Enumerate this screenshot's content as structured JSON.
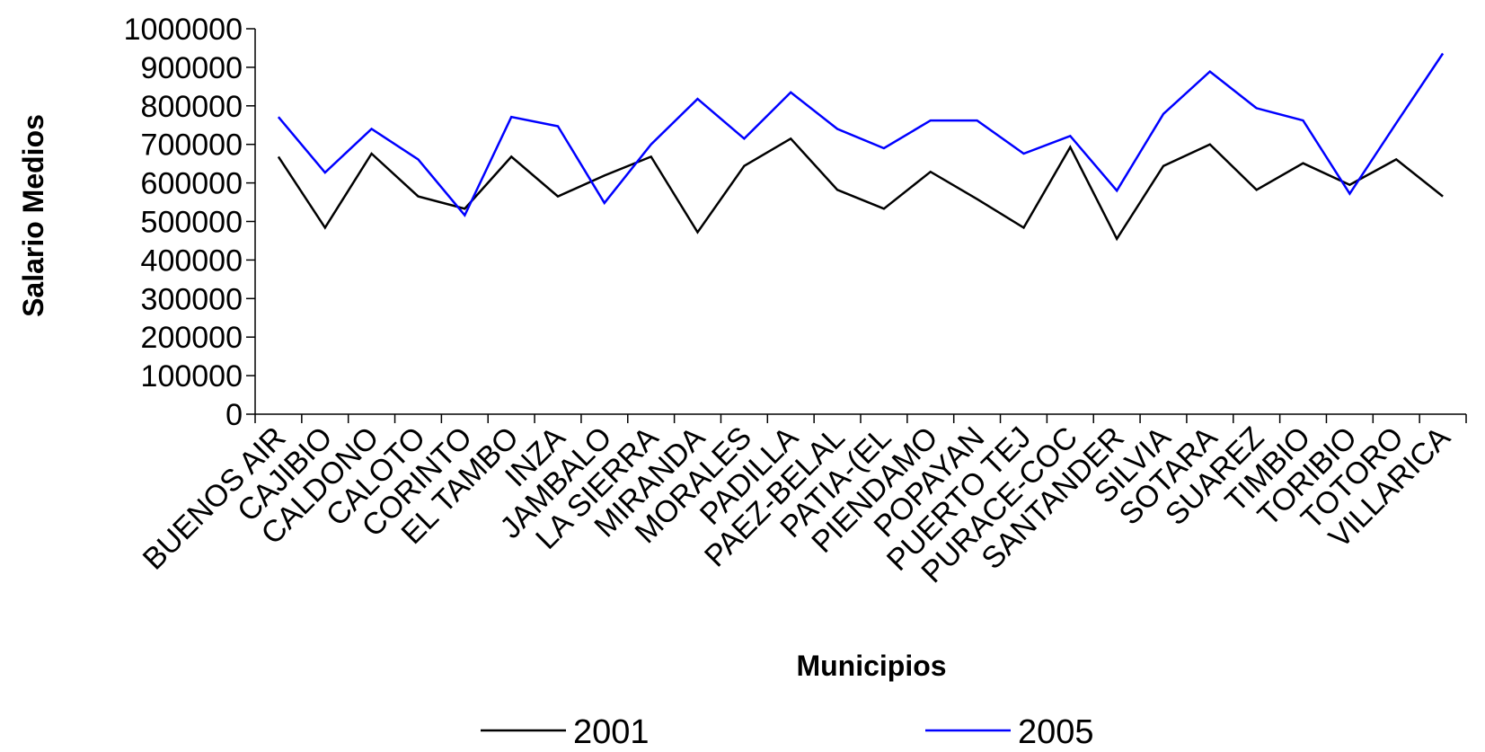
{
  "chart_data": {
    "type": "line",
    "x_label": "Municipios",
    "y_label": "Salario Medios",
    "categories": [
      "BUENOS AIR",
      "CAJIBIO",
      "CALDONO",
      "CALOTO",
      "CORINTO",
      "EL TAMBO",
      "INZA",
      "JAMBALO",
      "LA SIERRA",
      "MIRANDA",
      "MORALES",
      "PADILLA",
      "PAEZ-BELAL",
      "PATIA-(EL",
      "PIENDAMO",
      "POPAYAN",
      "PUERTO TEJ",
      "PURACE-COC",
      "SANTANDER",
      "SILVIA",
      "SOTARA",
      "SUAREZ",
      "TIMBIO",
      "TORIBIO",
      "TOTORO",
      "VILLARICA"
    ],
    "series": [
      {
        "name": "2001",
        "color": "#000000",
        "values": [
          668000,
          484000,
          676000,
          565000,
          533000,
          668000,
          565000,
          619000,
          668000,
          472000,
          644000,
          715000,
          582000,
          533000,
          629000,
          558000,
          484000,
          693000,
          455000,
          644000,
          700000,
          582000,
          651000,
          595000,
          661000,
          565000
        ]
      },
      {
        "name": "2005",
        "color": "#0000ff",
        "values": [
          771000,
          627000,
          740000,
          661000,
          516000,
          771000,
          747000,
          548000,
          700000,
          818000,
          715000,
          835000,
          740000,
          690000,
          762000,
          762000,
          676000,
          722000,
          580000,
          779000,
          889000,
          794000,
          762000,
          572000,
          755000,
          936000
        ]
      }
    ],
    "ylim": [
      0,
      1000000
    ],
    "yticks": [
      0,
      100000,
      200000,
      300000,
      400000,
      500000,
      600000,
      700000,
      800000,
      900000,
      1000000
    ],
    "grid": false,
    "legend": "bottom"
  }
}
